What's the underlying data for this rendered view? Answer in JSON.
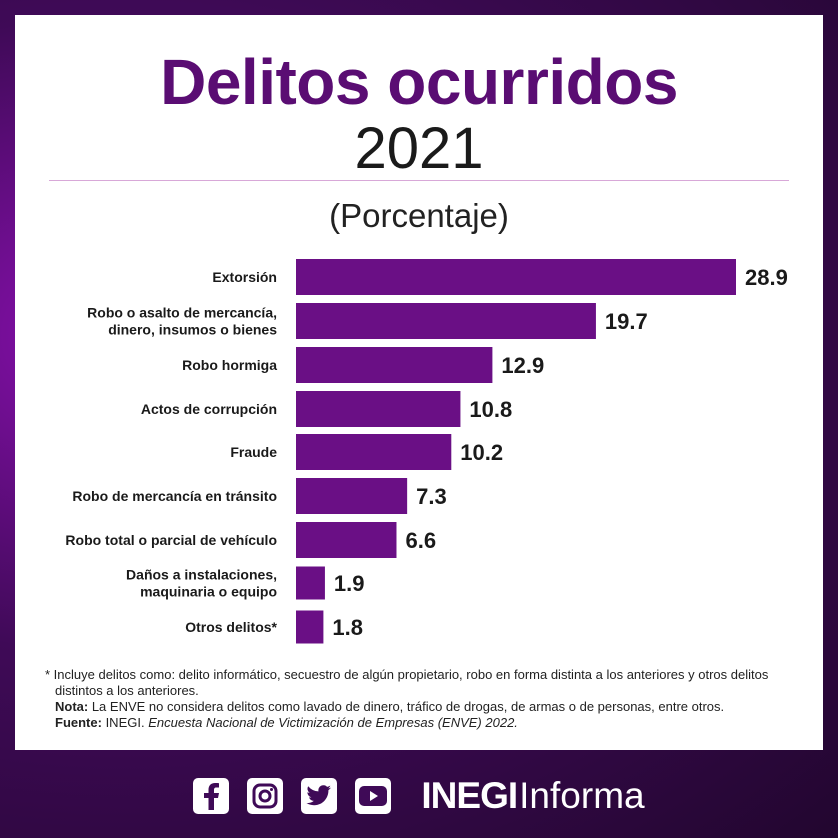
{
  "header": {
    "title": "Delitos ocurridos",
    "year": "2021",
    "subtitle": "(Porcentaje)"
  },
  "colors": {
    "bar": "#6a0f85",
    "title": "#5a0d73"
  },
  "chart_data": {
    "type": "bar",
    "orientation": "horizontal",
    "categories": [
      "Extorsión",
      "Robo o asalto de mercancía, dinero, insumos o bienes",
      "Robo hormiga",
      "Actos de corrupción",
      "Fraude",
      "Robo de mercancía en tránsito",
      "Robo total o parcial de vehículo",
      "Daños a instalaciones, maquinaria o equipo",
      "Otros delitos*"
    ],
    "category_lines": [
      [
        "Extorsión"
      ],
      [
        "Robo o asalto de mercancía,",
        "dinero, insumos o bienes"
      ],
      [
        "Robo hormiga"
      ],
      [
        "Actos de corrupción"
      ],
      [
        "Fraude"
      ],
      [
        "Robo de mercancía en tránsito"
      ],
      [
        "Robo total o parcial de vehículo"
      ],
      [
        "Daños a instalaciones,",
        "maquinaria o equipo"
      ],
      [
        "Otros delitos*"
      ]
    ],
    "values": [
      28.9,
      19.7,
      12.9,
      10.8,
      10.2,
      7.3,
      6.6,
      1.9,
      1.8
    ],
    "value_labels": [
      "28.9",
      "19.7",
      "12.9",
      "10.8",
      "10.2",
      "7.3",
      "6.6",
      "1.9",
      "1.8"
    ],
    "xlim": [
      0,
      28.9
    ],
    "grid": false,
    "legend": "none"
  },
  "notes": {
    "footnote": "* Incluye delitos como: delito informático, secuestro de algún propietario, robo en forma distinta a los anteriores y otros delitos distintos a los anteriores.",
    "nota_label": "Nota:",
    "nota_text": " La ENVE no considera delitos como lavado de dinero, tráfico de drogas, de armas o de personas, entre otros.",
    "fuente_label": "Fuente:",
    "fuente_text": " INEGI. ",
    "fuente_italic": "Encuesta Nacional de Victimización de Empresas (ENVE) 2022."
  },
  "footer": {
    "icons": [
      "facebook-icon",
      "instagram-icon",
      "twitter-icon",
      "youtube-icon"
    ],
    "brand_bold": "INEGI",
    "brand_regular": "Informa"
  }
}
